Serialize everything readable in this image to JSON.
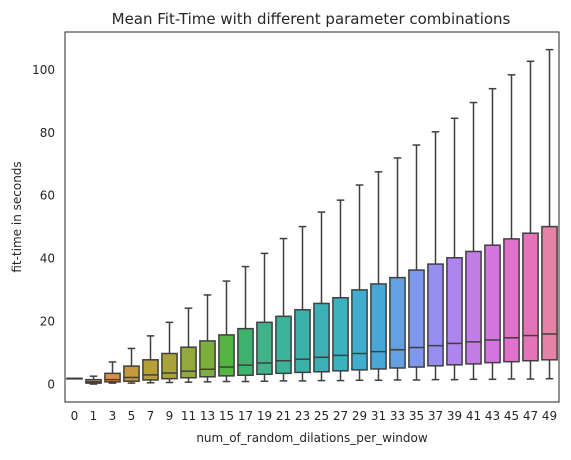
{
  "chart_data": {
    "type": "box",
    "title": "Mean Fit-Time with different parameter combinations",
    "xlabel": "num_of_random_dilations_per_window",
    "ylabel": "fit-time in seconds",
    "ylim": [
      -5.5,
      112
    ],
    "yticks": [
      0,
      20,
      40,
      60,
      80,
      100
    ],
    "grid": false,
    "legend": "none",
    "categories": [
      "0",
      "1",
      "3",
      "5",
      "7",
      "9",
      "11",
      "13",
      "15",
      "17",
      "19",
      "21",
      "23",
      "25",
      "27",
      "29",
      "31",
      "33",
      "35",
      "37",
      "39",
      "41",
      "43",
      "45",
      "47",
      "49"
    ],
    "boxes": [
      {
        "whislo": 2.0,
        "q1": 2.0,
        "med": 2.0,
        "q3": 2.0,
        "whishi": 2.0
      },
      {
        "whislo": 0.2,
        "q1": 0.5,
        "med": 0.9,
        "q3": 1.6,
        "whishi": 2.7
      },
      {
        "whislo": 0.5,
        "q1": 0.9,
        "med": 1.6,
        "q3": 3.6,
        "whishi": 7.2
      },
      {
        "whislo": 0.5,
        "q1": 1.1,
        "med": 2.3,
        "q3": 5.9,
        "whishi": 11.5
      },
      {
        "whislo": 0.6,
        "q1": 1.5,
        "med": 3.1,
        "q3": 7.9,
        "whishi": 15.5
      },
      {
        "whislo": 0.7,
        "q1": 1.9,
        "med": 3.7,
        "q3": 9.9,
        "whishi": 19.8
      },
      {
        "whislo": 0.8,
        "q1": 2.2,
        "med": 4.3,
        "q3": 11.9,
        "whishi": 24.3
      },
      {
        "whislo": 0.9,
        "q1": 2.5,
        "med": 4.9,
        "q3": 13.9,
        "whishi": 28.5
      },
      {
        "whislo": 1.0,
        "q1": 2.8,
        "med": 5.6,
        "q3": 15.8,
        "whishi": 32.9
      },
      {
        "whislo": 1.0,
        "q1": 3.0,
        "med": 6.2,
        "q3": 17.8,
        "whishi": 37.5
      },
      {
        "whislo": 1.1,
        "q1": 3.3,
        "med": 6.9,
        "q3": 19.8,
        "whishi": 41.7
      },
      {
        "whislo": 1.2,
        "q1": 3.6,
        "med": 7.6,
        "q3": 21.7,
        "whishi": 46.4
      },
      {
        "whislo": 1.2,
        "q1": 3.9,
        "med": 8.1,
        "q3": 23.8,
        "whishi": 50.2
      },
      {
        "whislo": 1.3,
        "q1": 4.1,
        "med": 8.7,
        "q3": 25.8,
        "whishi": 54.8
      },
      {
        "whislo": 1.3,
        "q1": 4.4,
        "med": 9.3,
        "q3": 27.6,
        "whishi": 58.6
      },
      {
        "whislo": 1.4,
        "q1": 4.7,
        "med": 9.9,
        "q3": 30.1,
        "whishi": 63.4
      },
      {
        "whislo": 1.4,
        "q1": 5.0,
        "med": 10.5,
        "q3": 32.0,
        "whishi": 67.6
      },
      {
        "whislo": 1.5,
        "q1": 5.3,
        "med": 11.1,
        "q3": 34.0,
        "whishi": 72.0
      },
      {
        "whislo": 1.5,
        "q1": 5.6,
        "med": 11.8,
        "q3": 36.4,
        "whishi": 76.1
      },
      {
        "whislo": 1.6,
        "q1": 6.0,
        "med": 12.4,
        "q3": 38.3,
        "whishi": 80.3
      },
      {
        "whislo": 1.6,
        "q1": 6.3,
        "med": 13.1,
        "q3": 40.3,
        "whishi": 84.6
      },
      {
        "whislo": 1.7,
        "q1": 6.6,
        "med": 13.6,
        "q3": 42.3,
        "whishi": 89.6
      },
      {
        "whislo": 1.7,
        "q1": 7.0,
        "med": 14.2,
        "q3": 44.3,
        "whishi": 94.0
      },
      {
        "whislo": 1.8,
        "q1": 7.3,
        "med": 14.9,
        "q3": 46.3,
        "whishi": 98.4
      },
      {
        "whislo": 1.8,
        "q1": 7.6,
        "med": 15.6,
        "q3": 48.1,
        "whishi": 102.7
      },
      {
        "whislo": 1.9,
        "q1": 7.9,
        "med": 16.1,
        "q3": 50.2,
        "whishi": 106.4
      }
    ],
    "colors": [
      "#e8807a",
      "#e28a5c",
      "#d79345",
      "#c49a3a",
      "#b5a038",
      "#a8a33a",
      "#94a93b",
      "#7caf3c",
      "#55b442",
      "#3db36f",
      "#40b38b",
      "#3db39a",
      "#3cb1a8",
      "#3eafb4",
      "#3cb2c0",
      "#40aece",
      "#47a8d8",
      "#63a1e3",
      "#7f97ed",
      "#978def",
      "#ad85ec",
      "#c27de7",
      "#d476e0",
      "#e071cd",
      "#e474b8",
      "#e582a6"
    ]
  }
}
